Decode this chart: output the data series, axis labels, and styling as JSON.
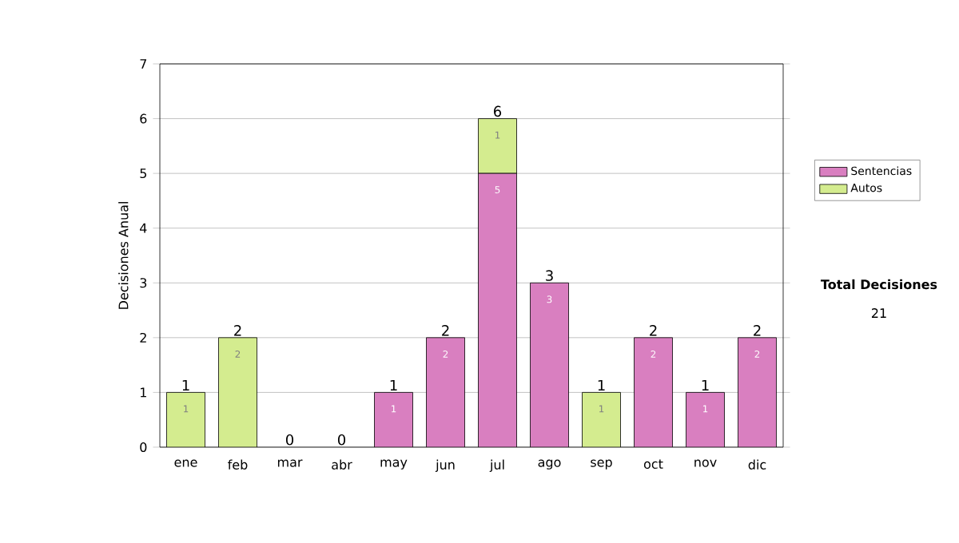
{
  "chart_data": {
    "type": "bar",
    "stacked": true,
    "ylabel": "Decisiones Anual",
    "categories": [
      "ene",
      "feb",
      "mar",
      "abr",
      "may",
      "jun",
      "jul",
      "ago",
      "sep",
      "oct",
      "nov",
      "dic"
    ],
    "series": [
      {
        "name": "Sentencias",
        "color": "#d97fc0",
        "values": [
          0,
          0,
          0,
          0,
          1,
          2,
          5,
          3,
          0,
          2,
          1,
          2
        ],
        "value_labels": [
          null,
          null,
          null,
          null,
          "1",
          "2",
          "5",
          "3",
          null,
          "2",
          "1",
          "2"
        ]
      },
      {
        "name": "Autos",
        "color": "#d4ec8f",
        "values": [
          1,
          2,
          0,
          0,
          0,
          0,
          1,
          0,
          1,
          0,
          0,
          0
        ],
        "value_labels": [
          "1",
          "2",
          null,
          null,
          null,
          null,
          "1",
          null,
          "1",
          null,
          null,
          null
        ]
      }
    ],
    "totals": [
      "1",
      "2",
      "0",
      "0",
      "1",
      "2",
      "6",
      "3",
      "1",
      "2",
      "1",
      "2"
    ],
    "ylim": [
      0,
      7
    ],
    "yticks": [
      0,
      1,
      2,
      3,
      4,
      5,
      6,
      7
    ],
    "grid": "y",
    "legend": "right",
    "annotations": [
      "Total Decisiones",
      "21"
    ]
  }
}
